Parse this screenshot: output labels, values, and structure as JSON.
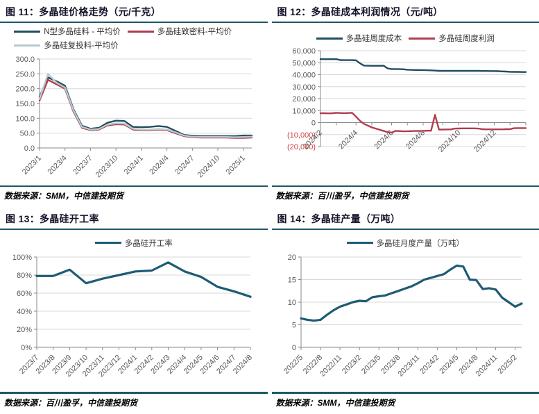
{
  "colors": {
    "grid": "#D9D9D9",
    "axis": "#8A8A8A",
    "label": "#595959",
    "neg": "#D04040",
    "rule_teal": "#1E5766",
    "teal_series": "#1F4E5F",
    "red_series": "#B13C4E",
    "gray_series": "#BAC8CF",
    "title_text": "#14142B"
  },
  "panels": [
    {
      "title": "图 11：多晶硅价格走势（元/千克）",
      "source": "数据来源：SMM，中信建投期货"
    },
    {
      "title": "图 12：多晶硅成本利润情况（元/吨）",
      "source": "数据来源：百川盈孚，中信建投期货"
    },
    {
      "title": "图 13：多晶硅开工率",
      "source": "数据来源：百川盈孚，中信建投期货"
    },
    {
      "title": "图 14：多晶硅产量（万吨）",
      "source": "数据来源：SMM，中信建投期货"
    }
  ],
  "chart_data": [
    {
      "type": "line",
      "title": "图 11：多晶硅价格走势（元/千克）",
      "ylabel": "元/千克",
      "legend_position": "top",
      "grid": true,
      "ylim": [
        0,
        300
      ],
      "y_ticks": [
        {
          "v": 300,
          "label": "300.0"
        },
        {
          "v": 250,
          "label": "250.0"
        },
        {
          "v": 200,
          "label": "200.0"
        },
        {
          "v": 150,
          "label": "150.0"
        },
        {
          "v": 100,
          "label": "100.0"
        },
        {
          "v": 50,
          "label": "50.0"
        },
        {
          "v": 0,
          "label": "0.0"
        }
      ],
      "x_tick_labels": [
        "2023/1",
        "2023/4",
        "2023/7",
        "2023/10",
        "2024/1",
        "2024/4",
        "2024/7",
        "2024/10",
        "2025/1"
      ],
      "x_tick_indices": [
        0,
        3,
        6,
        9,
        12,
        15,
        18,
        21,
        24
      ],
      "x": "monthly 2023/1 - 2025/2",
      "series": [
        {
          "name": "N型多晶硅料 - 平均价",
          "color": "#1F4E5F",
          "values": [
            172,
            238,
            225,
            210,
            130,
            75,
            65,
            68,
            85,
            92,
            91,
            71,
            70,
            71,
            74,
            71,
            58,
            44,
            41,
            40,
            40,
            40,
            40,
            40,
            42,
            42
          ]
        },
        {
          "name": "多晶硅致密料-平均价",
          "color": "#B13C4E",
          "values": [
            160,
            230,
            215,
            200,
            122,
            68,
            60,
            62,
            76,
            80,
            79,
            62,
            60,
            60,
            62,
            60,
            50,
            40,
            36,
            35,
            35,
            35,
            35,
            34,
            34,
            35
          ]
        },
        {
          "name": "多晶硅复投料-平均价",
          "color": "#BAC8CF",
          "values": [
            165,
            250,
            220,
            204,
            126,
            71,
            62,
            64,
            79,
            83,
            82,
            65,
            62,
            62,
            64,
            62,
            53,
            42,
            38,
            37,
            37,
            37,
            37,
            36,
            37,
            38
          ]
        }
      ]
    },
    {
      "type": "line",
      "title": "图 12：多晶硅成本利润情况（元/吨）",
      "ylabel": "元/吨",
      "legend_position": "top",
      "grid": true,
      "ylim": [
        -20000,
        60000
      ],
      "x_axis_at": 0,
      "neg_red": true,
      "y_ticks": [
        {
          "v": 60000,
          "label": "60,000"
        },
        {
          "v": 50000,
          "label": "50,000"
        },
        {
          "v": 40000,
          "label": "40,000"
        },
        {
          "v": 30000,
          "label": "30,000"
        },
        {
          "v": 20000,
          "label": "20,000"
        },
        {
          "v": 10000,
          "label": "10,000"
        },
        {
          "v": 0,
          "label": "0"
        },
        {
          "v": -10000,
          "label": "(10,000)"
        },
        {
          "v": -20000,
          "label": "(20,000)"
        }
      ],
      "x_tick_labels": [
        "2024/2",
        "2024/4",
        "2024/6",
        "2024/8",
        "2024/10",
        "2024/12"
      ],
      "x_tick_indices": [
        0,
        9,
        18,
        26,
        35,
        44
      ],
      "x_minor_tick_indices": [
        0,
        4,
        9,
        13,
        18,
        22,
        26,
        31,
        35,
        40,
        44,
        48,
        52
      ],
      "x": "weekly 2024/2 - 2025/2",
      "series": [
        {
          "name": "多晶硅周度成本",
          "color": "#1F4E5F",
          "values": [
            53000,
            52900,
            52900,
            52900,
            53000,
            52200,
            52100,
            52100,
            52100,
            52000,
            49500,
            47600,
            47500,
            47400,
            47400,
            47400,
            47500,
            45200,
            44700,
            44700,
            44600,
            44500,
            44100,
            44000,
            43900,
            43900,
            43800,
            43700,
            43600,
            43400,
            43200,
            43200,
            43200,
            43200,
            43200,
            43200,
            43200,
            43200,
            43200,
            43200,
            43200,
            43100,
            43100,
            43000,
            43000,
            42900,
            42700,
            42600,
            42400,
            42300,
            42300,
            42200,
            42200
          ]
        },
        {
          "name": "多晶硅周度利润",
          "color": "#B13C4E",
          "values": [
            7800,
            7800,
            7700,
            7800,
            8200,
            8000,
            7900,
            8000,
            8200,
            5000,
            1500,
            -1000,
            -2500,
            -4000,
            -5000,
            -6000,
            -7000,
            -7800,
            -8400,
            -6900,
            -7100,
            -7300,
            -7200,
            -7100,
            -7000,
            -7000,
            -6900,
            -6800,
            -6800,
            6500,
            -5800,
            -5800,
            -5700,
            -5700,
            -5000,
            -4900,
            -4800,
            -4800,
            -4800,
            -4800,
            -5000,
            -5500,
            -5600,
            -5600,
            -5600,
            -5600,
            -5600,
            -5500,
            -5500,
            -4700,
            -4600,
            -4600,
            -4600
          ]
        }
      ]
    },
    {
      "type": "line",
      "title": "图 13：多晶硅开工率",
      "ylabel": "开工率 %",
      "legend_position": "top",
      "grid": true,
      "ylim": [
        0,
        100
      ],
      "y_ticks": [
        {
          "v": 100,
          "label": "100%"
        },
        {
          "v": 80,
          "label": "80%"
        },
        {
          "v": 60,
          "label": "60%"
        },
        {
          "v": 40,
          "label": "40%"
        },
        {
          "v": 20,
          "label": "20%"
        },
        {
          "v": 0,
          "label": "0%"
        }
      ],
      "x_tick_labels": [
        "2023/7",
        "2023/8",
        "2023/9",
        "2023/10",
        "2023/11",
        "2023/12",
        "2024/1",
        "2024/2",
        "2024/3",
        "2024/4",
        "2024/5",
        "2024/6",
        "2024/7",
        "2024/8"
      ],
      "x_tick_indices": [
        0,
        1,
        2,
        3,
        4,
        5,
        6,
        7,
        8,
        9,
        10,
        11,
        12,
        13
      ],
      "x": "monthly 2023/7 - 2024/8",
      "series": [
        {
          "name": "多晶硅开工率",
          "color": "#1E5B75",
          "values": [
            79,
            79,
            86,
            71,
            76,
            80,
            84,
            85,
            94,
            84,
            78,
            67,
            62,
            56
          ]
        }
      ]
    },
    {
      "type": "line",
      "title": "图 14：多晶硅产量（万吨）",
      "ylabel": "万吨",
      "legend_position": "top",
      "grid": true,
      "ylim": [
        0,
        20
      ],
      "y_ticks": [
        {
          "v": 20,
          "label": "20"
        },
        {
          "v": 15,
          "label": "15"
        },
        {
          "v": 10,
          "label": "10"
        },
        {
          "v": 5,
          "label": "5"
        },
        {
          "v": 0,
          "label": "0"
        }
      ],
      "x_tick_labels": [
        "2022/5",
        "2022/8",
        "2022/11",
        "2023/2",
        "2023/5",
        "2023/8",
        "2023/11",
        "2024/2",
        "2024/5",
        "2024/8",
        "2024/11",
        "2025/2"
      ],
      "x_tick_indices": [
        0,
        3,
        6,
        9,
        12,
        15,
        18,
        21,
        24,
        27,
        30,
        33
      ],
      "x": "monthly 2022/5 - 2025/3",
      "series": [
        {
          "name": "多晶硅月度产量（万吨）",
          "color": "#1E5B75",
          "values": [
            6.4,
            6.1,
            5.9,
            6.1,
            7.2,
            8.2,
            9.0,
            9.5,
            10.0,
            10.3,
            10.2,
            11.1,
            11.3,
            11.5,
            12.0,
            12.5,
            13.0,
            13.5,
            14.2,
            15.0,
            15.4,
            15.8,
            16.2,
            17.2,
            18.1,
            17.9,
            15.0,
            14.9,
            12.9,
            13.1,
            12.8,
            11.0,
            10.0,
            9.0,
            9.7
          ]
        }
      ]
    }
  ]
}
